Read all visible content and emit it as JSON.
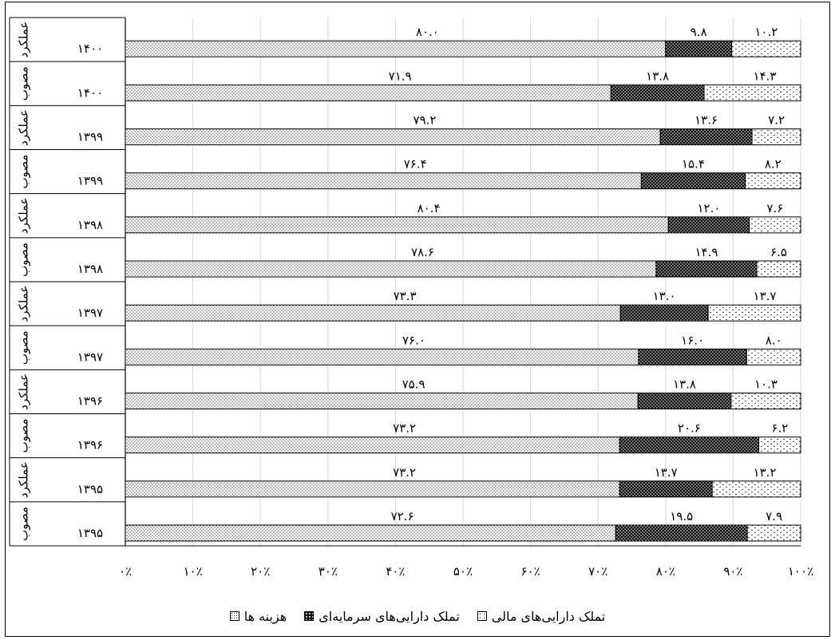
{
  "chart_data": {
    "type": "bar",
    "orientation": "horizontal",
    "stacked": true,
    "percent": true,
    "title": "",
    "xlabel": "",
    "ylabel": "",
    "xlim": [
      0,
      100
    ],
    "x_ticks": [
      "۰٪",
      "۱۰٪",
      "۲۰٪",
      "۳۰٪",
      "۴۰٪",
      "۵۰٪",
      "۶۰٪",
      "۷۰٪",
      "۸۰٪",
      "۹۰٪",
      "۱۰۰٪"
    ],
    "grid": true,
    "legend_position": "bottom",
    "categories": [
      {
        "group": "عملکرد",
        "year": "۱۴۰۰"
      },
      {
        "group": "مصوب",
        "year": "۱۴۰۰"
      },
      {
        "group": "عملکرد",
        "year": "۱۳۹۹"
      },
      {
        "group": "مصوب",
        "year": "۱۳۹۹"
      },
      {
        "group": "عملکرد",
        "year": "۱۳۹۸"
      },
      {
        "group": "مصوب",
        "year": "۱۳۹۸"
      },
      {
        "group": "عملکرد",
        "year": "۱۳۹۷"
      },
      {
        "group": "مصوب",
        "year": "۱۳۹۷"
      },
      {
        "group": "عملکرد",
        "year": "۱۳۹۶"
      },
      {
        "group": "مصوب",
        "year": "۱۳۹۶"
      },
      {
        "group": "عملکرد",
        "year": "۱۳۹۵"
      },
      {
        "group": "مصوب",
        "year": "۱۳۹۵"
      }
    ],
    "series": [
      {
        "name": "هزینه ها",
        "pattern": "fine-dots",
        "values": [
          80.0,
          71.9,
          79.2,
          76.4,
          80.4,
          78.6,
          73.3,
          76.0,
          75.9,
          73.2,
          73.2,
          72.6
        ],
        "labels": [
          "۸۰.۰",
          "۷۱.۹",
          "۷۹.۲",
          "۷۶.۴",
          "۸۰.۴",
          "۷۸.۶",
          "۷۳.۳",
          "۷۶.۰",
          "۷۵.۹",
          "۷۳.۲",
          "۷۳.۲",
          "۷۲.۶"
        ]
      },
      {
        "name": "تملک دارایی‌های سرمایه‌ای",
        "pattern": "dense-dark",
        "values": [
          9.8,
          13.8,
          13.6,
          15.4,
          12.0,
          14.9,
          13.0,
          16.0,
          13.8,
          20.6,
          13.7,
          19.5
        ],
        "labels": [
          "۹.۸",
          "۱۳.۸",
          "۱۳.۶",
          "۱۵.۴",
          "۱۲.۰",
          "۱۴.۹",
          "۱۳.۰",
          "۱۶.۰",
          "۱۳.۸",
          "۲۰.۶",
          "۱۳.۷",
          "۱۹.۵"
        ]
      },
      {
        "name": "تملک دارایی‌های مالی",
        "pattern": "sparse-dots",
        "values": [
          10.2,
          14.3,
          7.2,
          8.2,
          7.6,
          6.5,
          13.7,
          8.0,
          10.3,
          6.2,
          13.2,
          7.9
        ],
        "labels": [
          "۱۰.۲",
          "۱۴.۳",
          "۷.۲",
          "۸.۲",
          "۷.۶",
          "۶.۵",
          "۱۳.۷",
          "۸.۰",
          "۱۰.۳",
          "۶.۲",
          "۱۳.۲",
          "۷.۹"
        ]
      }
    ]
  },
  "legend": {
    "items": [
      {
        "key": "financial",
        "label": "تملک دارایی‌های مالی"
      },
      {
        "key": "capital",
        "label": "تملک دارایی‌های سرمایه‌ای"
      },
      {
        "key": "expense",
        "label": "هزینه ها"
      }
    ]
  }
}
